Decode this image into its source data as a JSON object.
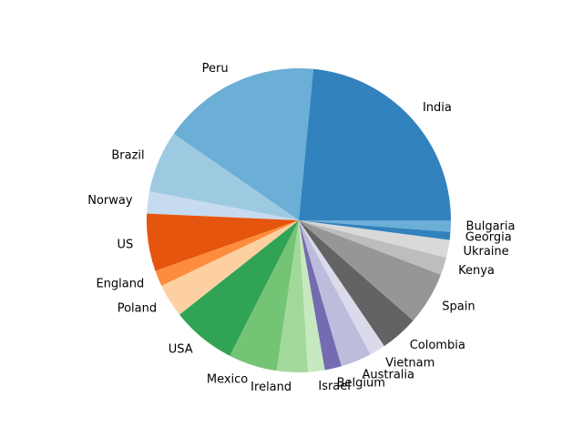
{
  "chart_data": {
    "type": "pie",
    "title": "",
    "start_angle_deg": 0,
    "direction": "counterclockwise",
    "slices": [
      {
        "label": "India",
        "value": 25.0,
        "color": "#3182bd"
      },
      {
        "label": "Peru",
        "value": 18.0,
        "color": "#6baed6"
      },
      {
        "label": "Brazil",
        "value": 7.0,
        "color": "#9ecae1"
      },
      {
        "label": "Norway",
        "value": 2.5,
        "color": "#c6dbef"
      },
      {
        "label": "US",
        "value": 6.5,
        "color": "#e6550d"
      },
      {
        "label": "England",
        "value": 1.8,
        "color": "#fd8d3c"
      },
      {
        "label": "Poland",
        "value": 3.8,
        "color": "#fdd0a2"
      },
      {
        "label": "USA",
        "value": 7.3,
        "color": "#31a354"
      },
      {
        "label": "Mexico",
        "value": 5.5,
        "color": "#74c476"
      },
      {
        "label": "Ireland",
        "value": 3.5,
        "color": "#a1d99b"
      },
      {
        "label": "Israel",
        "value": 1.9,
        "color": "#c7e9c0"
      },
      {
        "label": "Belgium",
        "value": 1.9,
        "color": "#756bb1"
      },
      {
        "label": "Australia",
        "value": 3.5,
        "color": "#bcbddc"
      },
      {
        "label": "Vietnam",
        "value": 1.8,
        "color": "#dadaeb"
      },
      {
        "label": "Colombia",
        "value": 4.3,
        "color": "#636363"
      },
      {
        "label": "Spain",
        "value": 6.0,
        "color": "#969696"
      },
      {
        "label": "Kenya",
        "value": 2.0,
        "color": "#bdbdbd"
      },
      {
        "label": "Ukraine",
        "value": 2.0,
        "color": "#d9d9d9"
      },
      {
        "label": "Georgia",
        "value": 0.9,
        "color": "#3182bd"
      },
      {
        "label": "Bulgaria",
        "value": 1.3,
        "color": "#6baed6"
      }
    ]
  }
}
